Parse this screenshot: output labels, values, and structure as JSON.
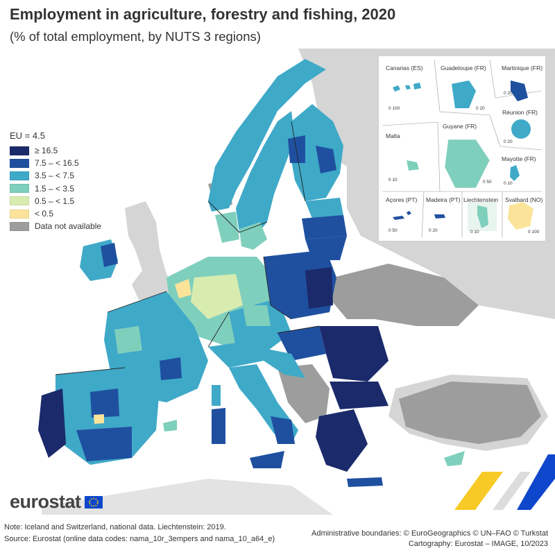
{
  "title": "Employment in agriculture, forestry and fishing, 2020",
  "subtitle": "(% of total employment, by NUTS 3 regions)",
  "legend": {
    "title": "EU = 4.5",
    "classes": [
      {
        "label": "≥ 16.5",
        "color": "#1b2a6b"
      },
      {
        "label": "7.5 – < 16.5",
        "color": "#1f50a0"
      },
      {
        "label": "3.5 – < 7.5",
        "color": "#3fa9c8"
      },
      {
        "label": "1.5 – < 3.5",
        "color": "#7fcfbd"
      },
      {
        "label": "0.5 – < 1.5",
        "color": "#d8ecb0"
      },
      {
        "label": "< 0.5",
        "color": "#fbe49a"
      },
      {
        "label": "Data not available",
        "color": "#9d9d9d"
      }
    ]
  },
  "insets": [
    {
      "label": "Canarias (ES)",
      "scale": "0   100"
    },
    {
      "label": "Guadeloupe (FR)",
      "scale": "0   20"
    },
    {
      "label": "Martinique (FR)",
      "scale": "0   20"
    },
    {
      "label": "Réunion (FR)",
      "scale": "0   20"
    },
    {
      "label": "Malta",
      "scale": "0   10"
    },
    {
      "label": "Guyane (FR)",
      "scale": "0  50"
    },
    {
      "label": "Mayotte (FR)",
      "scale": "0  10"
    },
    {
      "label": "Açores (PT)",
      "scale": "0   50"
    },
    {
      "label": "Madeira (PT)",
      "scale": "0   20"
    },
    {
      "label": "Liechtenstein",
      "scale": "0   10"
    },
    {
      "label": "Svalbard (NO)",
      "scale": "0 100"
    }
  ],
  "brand": "eurostat",
  "footer": {
    "note": "Note: Iceland and Switzerland, national data. Liechtenstein: 2019.",
    "source": "Source: Eurostat (online data codes: nama_10r_3empers and nama_10_a64_e)",
    "boundaries": "Administrative boundaries: © EuroGeographics © UN–FAO © Turkstat",
    "cartography": "Cartography: Eurostat – IMAGE, 10/2023"
  },
  "colors": {
    "non_eu_land": "#d5d5d5",
    "sea": "#ffffff",
    "accent_yellow": "#f6c100",
    "accent_blue": "#0e47cb"
  }
}
